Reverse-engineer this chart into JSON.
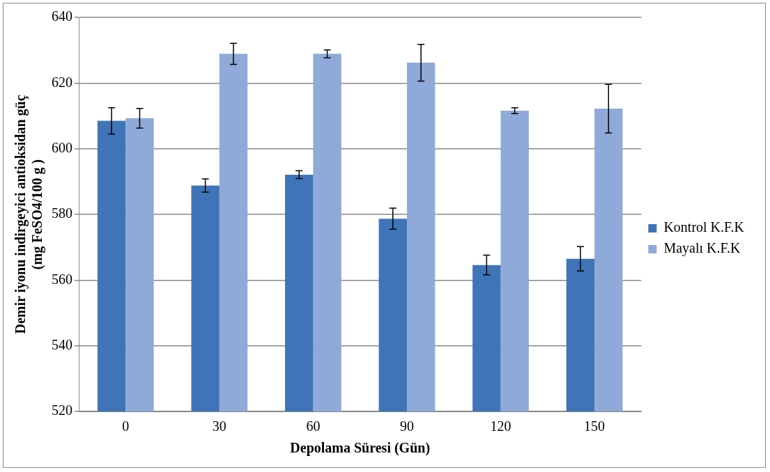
{
  "chart_data": {
    "type": "bar",
    "xlabel": "Depolama Süresi (Gün)",
    "ylabel": "Demir iyonu indirgeyici antioksidan güç\n(mg FeSO4/100 g )",
    "categories": [
      "0",
      "30",
      "60",
      "90",
      "120",
      "150"
    ],
    "series": [
      {
        "name": "Kontrol K.F.K",
        "color": "#3f74b8",
        "values": [
          608.5,
          588.8,
          592.1,
          578.7,
          564.6,
          566.5
        ],
        "errors": [
          4,
          2,
          1.2,
          3.2,
          3,
          3.7
        ]
      },
      {
        "name": "Mayalı K.F.K",
        "color": "#8fa9d8",
        "values": [
          609.3,
          628.9,
          628.9,
          626.2,
          611.6,
          612.2
        ],
        "errors": [
          3,
          3.2,
          1.2,
          5.6,
          0.9,
          7.4
        ]
      }
    ],
    "ylim": [
      520,
      640
    ],
    "yticks": [
      520,
      540,
      560,
      580,
      600,
      620,
      640
    ],
    "grid": "y",
    "legend": "right"
  }
}
